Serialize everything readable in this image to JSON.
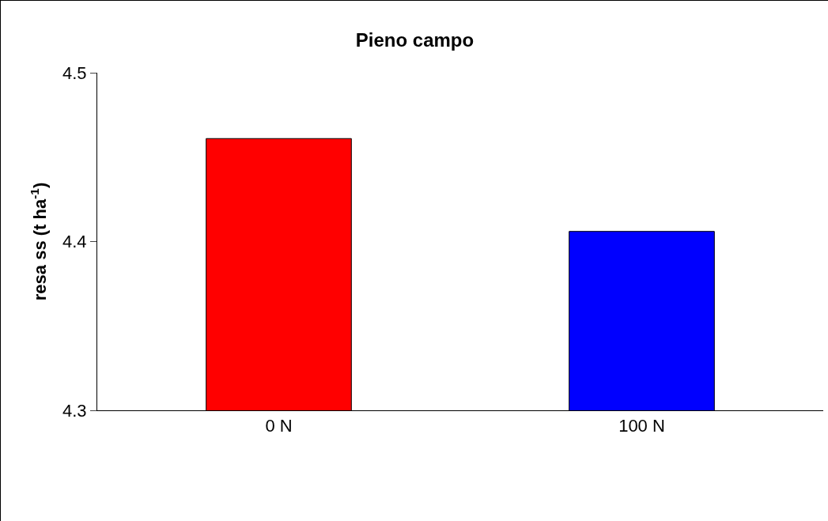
{
  "chart_data": {
    "type": "bar",
    "title": "Pieno campo",
    "ylabel": "resa ss (t ha$^{-1}$)",
    "categories": [
      "0 N",
      "100 N"
    ],
    "values": [
      4.461,
      4.406
    ],
    "colors": [
      "#ff0000",
      "#0000ff"
    ],
    "ylim": [
      4.3,
      4.5
    ],
    "yticks": [
      4.3,
      4.4,
      4.5
    ]
  }
}
